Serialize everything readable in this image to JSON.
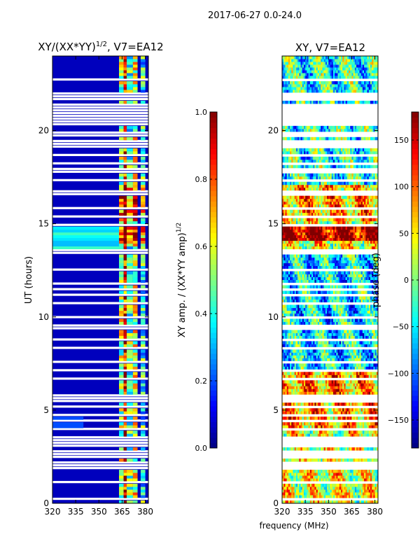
{
  "figure": {
    "suptitle": "2017-06-27 0.0-24.0",
    "shared_xlabel": "frequency (MHz)"
  },
  "chart_data": [
    {
      "type": "heatmap",
      "title_prefix": "XY/(XX*YY)",
      "title_exp": "1/2",
      "title_suffix": ", V7=EA12",
      "ylabel": "UT (hours)",
      "xlim": [
        320,
        382
      ],
      "ylim": [
        0,
        24
      ],
      "xticks": [
        320,
        335,
        350,
        365,
        380
      ],
      "yticks": [
        0,
        5,
        10,
        15,
        20
      ],
      "colorbar": {
        "label_main": "XY amp. / (XX*YY amp)",
        "label_exp": "1/2",
        "range": [
          0.0,
          1.0
        ],
        "ticks": [
          "0.0",
          "0.2",
          "0.4",
          "0.6",
          "0.8",
          "1.0"
        ],
        "tick_values": [
          0.0,
          0.2,
          0.4,
          0.6,
          0.8,
          1.0
        ]
      }
    },
    {
      "type": "heatmap",
      "title": "XY, V7=EA12",
      "xlim": [
        320,
        382
      ],
      "ylim": [
        0,
        24
      ],
      "xticks": [
        320,
        335,
        350,
        365,
        380
      ],
      "yticks": [
        0,
        5,
        10,
        15,
        20
      ],
      "colorbar": {
        "label": "phase (deg)",
        "range": [
          -180,
          180
        ],
        "ticks": [
          "−150",
          "−100",
          "−50",
          "0",
          "50",
          "100",
          "150"
        ],
        "tick_values": [
          -150,
          -100,
          -50,
          0,
          50,
          100,
          150
        ]
      }
    }
  ]
}
